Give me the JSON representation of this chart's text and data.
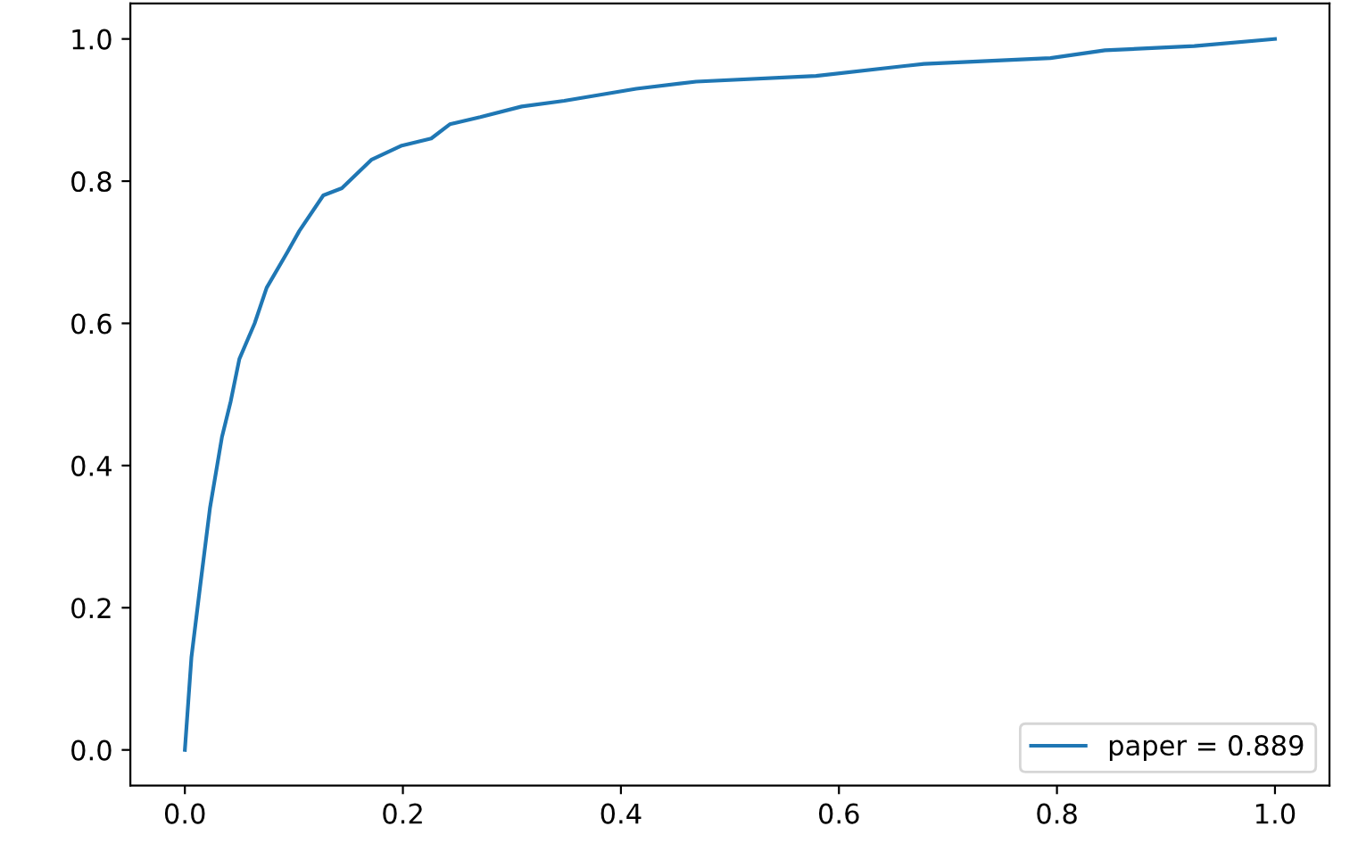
{
  "chart_data": {
    "type": "line",
    "xlim": [
      -0.05,
      1.05
    ],
    "ylim": [
      -0.05,
      1.05
    ],
    "xticks": [
      {
        "value": 0,
        "label": "0.0"
      },
      0.2,
      0.4,
      0.6,
      0.8,
      {
        "value": 1,
        "label": "1.0"
      }
    ],
    "yticks": [
      {
        "value": 0,
        "label": "0.0"
      },
      0.2,
      0.4,
      0.6,
      0.8,
      {
        "value": 1,
        "label": "1.0"
      }
    ],
    "grid": false,
    "legend": "bottom right",
    "series": [
      {
        "name": "paper = 0.889",
        "color": "#1f77b4",
        "x": [
          0,
          0.006,
          0.014,
          0.023,
          0.034,
          0.042,
          0.05,
          0.064,
          0.075,
          0.094,
          0.105,
          0.127,
          0.144,
          0.171,
          0.199,
          0.226,
          0.243,
          0.271,
          0.309,
          0.348,
          0.414,
          0.469,
          0.579,
          0.678,
          0.794,
          0.844,
          0.926,
          1
        ],
        "values": [
          0,
          0.13,
          0.23,
          0.34,
          0.44,
          0.49,
          0.55,
          0.6,
          0.65,
          0.7,
          0.73,
          0.78,
          0.79,
          0.83,
          0.85,
          0.86,
          0.88,
          0.89,
          0.905,
          0.913,
          0.93,
          0.94,
          0.948,
          0.965,
          0.973,
          0.984,
          0.99,
          1
        ]
      }
    ]
  }
}
